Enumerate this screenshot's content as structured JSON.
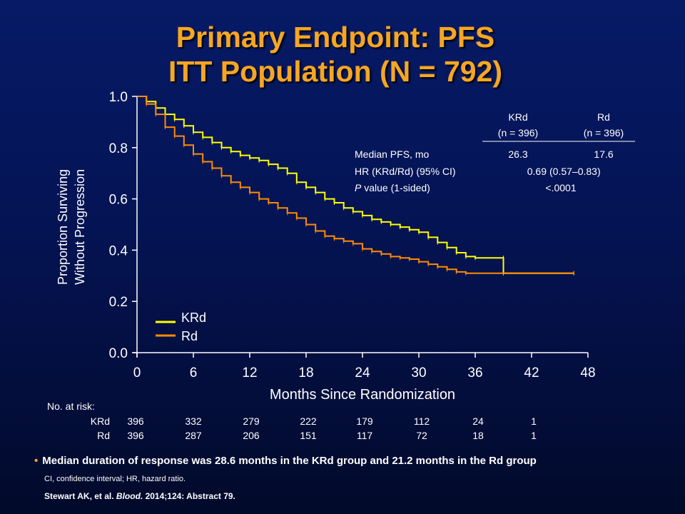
{
  "slide": {
    "title_line1": "Primary Endpoint: PFS",
    "title_line2": "ITT Population (N = 792)",
    "bullet": "Median duration of response was 28.6 months in the KRd group and 21.2 months in the Rd group",
    "footnote": "CI, confidence interval; HR, hazard ratio.",
    "citation_authors": "Stewart AK, et al. ",
    "citation_journal": "Blood.",
    "citation_rest": " 2014;124: Abstract 79."
  },
  "colors": {
    "title": "#f5a623",
    "krd": "#ffff00",
    "rd": "#ff8c00",
    "background_top": "#061a66",
    "background_bottom": "#020a2a"
  },
  "stats_table": {
    "columns": [
      {
        "label": "KRd",
        "n": "(n = 396)"
      },
      {
        "label": "Rd",
        "n": "(n = 396)"
      }
    ],
    "rows": [
      {
        "label": "Median PFS, mo",
        "italic_prefix": "",
        "values": [
          "26.3",
          "17.6"
        ]
      },
      {
        "label": "HR (KRd/Rd) (95% CI)",
        "italic_prefix": "",
        "values": [
          "0.69",
          "(0.57–0.83)"
        ]
      },
      {
        "label": " value (1-sided)",
        "italic_prefix": "P",
        "values": [
          "<.0001",
          ""
        ]
      }
    ]
  },
  "risk_table": {
    "header": "No. at risk:",
    "rows": [
      {
        "name": "KRd",
        "values": [
          "396",
          "332",
          "279",
          "222",
          "179",
          "112",
          "24",
          "1"
        ]
      },
      {
        "name": "Rd",
        "values": [
          "396",
          "287",
          "206",
          "151",
          "117",
          "72",
          "18",
          "1"
        ]
      }
    ]
  },
  "chart_data": {
    "type": "line",
    "xlabel": "Months Since Randomization",
    "ylabel_line1": "Proportion Surviving",
    "ylabel_line2": "Without Progression",
    "xlim": [
      0,
      48
    ],
    "ylim": [
      0,
      1.0
    ],
    "xticks": [
      0,
      6,
      12,
      18,
      24,
      30,
      36,
      42,
      48
    ],
    "yticks": [
      "0.0",
      "0.2",
      "0.4",
      "0.6",
      "0.8",
      "1.0"
    ],
    "grid": false,
    "legend": "bottom-left",
    "series": [
      {
        "name": "KRd",
        "color": "#ffff00",
        "points": [
          [
            0,
            1.0
          ],
          [
            1,
            0.98
          ],
          [
            2,
            0.955
          ],
          [
            3,
            0.93
          ],
          [
            4,
            0.91
          ],
          [
            5,
            0.885
          ],
          [
            6,
            0.86
          ],
          [
            7,
            0.84
          ],
          [
            8,
            0.82
          ],
          [
            9,
            0.8
          ],
          [
            10,
            0.785
          ],
          [
            11,
            0.77
          ],
          [
            12,
            0.76
          ],
          [
            13,
            0.75
          ],
          [
            14,
            0.735
          ],
          [
            15,
            0.72
          ],
          [
            16,
            0.7
          ],
          [
            17,
            0.665
          ],
          [
            18,
            0.645
          ],
          [
            19,
            0.625
          ],
          [
            20,
            0.6
          ],
          [
            21,
            0.585
          ],
          [
            22,
            0.565
          ],
          [
            23,
            0.55
          ],
          [
            24,
            0.535
          ],
          [
            25,
            0.52
          ],
          [
            26,
            0.51
          ],
          [
            27,
            0.5
          ],
          [
            28,
            0.49
          ],
          [
            29,
            0.48
          ],
          [
            30,
            0.47
          ],
          [
            31,
            0.45
          ],
          [
            32,
            0.43
          ],
          [
            33,
            0.41
          ],
          [
            34,
            0.39
          ],
          [
            35,
            0.375
          ],
          [
            36,
            0.37
          ],
          [
            39,
            0.37
          ],
          [
            39,
            0.31
          ],
          [
            46.5,
            0.31
          ]
        ]
      },
      {
        "name": "Rd",
        "color": "#ff8c00",
        "points": [
          [
            0,
            1.0
          ],
          [
            1,
            0.97
          ],
          [
            2,
            0.93
          ],
          [
            3,
            0.88
          ],
          [
            4,
            0.845
          ],
          [
            5,
            0.81
          ],
          [
            6,
            0.775
          ],
          [
            7,
            0.745
          ],
          [
            8,
            0.72
          ],
          [
            9,
            0.69
          ],
          [
            10,
            0.665
          ],
          [
            11,
            0.645
          ],
          [
            12,
            0.625
          ],
          [
            13,
            0.6
          ],
          [
            14,
            0.585
          ],
          [
            15,
            0.565
          ],
          [
            16,
            0.545
          ],
          [
            17,
            0.525
          ],
          [
            18,
            0.5
          ],
          [
            19,
            0.475
          ],
          [
            20,
            0.455
          ],
          [
            21,
            0.445
          ],
          [
            22,
            0.435
          ],
          [
            23,
            0.425
          ],
          [
            24,
            0.405
          ],
          [
            25,
            0.395
          ],
          [
            26,
            0.385
          ],
          [
            27,
            0.375
          ],
          [
            28,
            0.37
          ],
          [
            29,
            0.365
          ],
          [
            30,
            0.355
          ],
          [
            31,
            0.345
          ],
          [
            32,
            0.335
          ],
          [
            33,
            0.325
          ],
          [
            34,
            0.315
          ],
          [
            35,
            0.31
          ],
          [
            46.5,
            0.31
          ]
        ]
      }
    ]
  }
}
